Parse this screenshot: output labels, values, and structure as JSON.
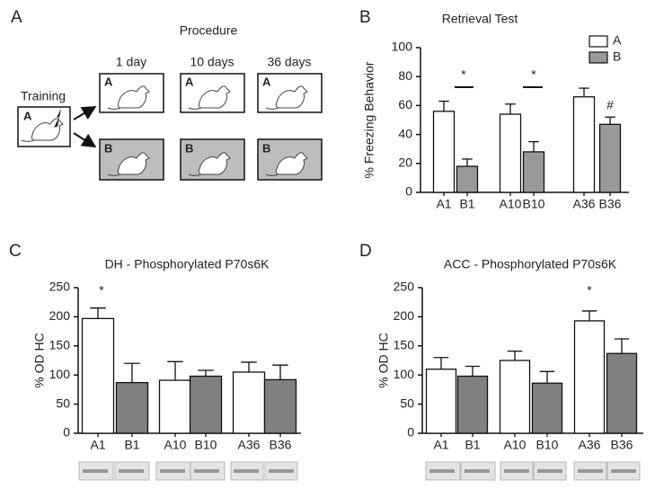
{
  "panel_labels": [
    "A",
    "B",
    "C",
    "D"
  ],
  "diagram": {
    "title": "Procedure",
    "training": {
      "label": "Training",
      "box": "A"
    },
    "columns": [
      "1 day",
      "10 days",
      "36 days"
    ],
    "top_row": [
      "A",
      "A",
      "A"
    ],
    "bottom_row": [
      "B",
      "B",
      "B"
    ]
  },
  "chart_data": [
    {
      "type": "bar",
      "title": "Retrieval Test",
      "y_label": "% Freezing Behavior",
      "categories": [
        "A1",
        "B1",
        "A10",
        "B10",
        "A36",
        "B36"
      ],
      "values": [
        56,
        18,
        54,
        28,
        66,
        47
      ],
      "errors": [
        7,
        5,
        7,
        7,
        6,
        5
      ],
      "colors": [
        "#ffffff",
        "#999999",
        "#ffffff",
        "#999999",
        "#ffffff",
        "#999999"
      ],
      "legend": [
        {
          "name": "A",
          "color": "#ffffff"
        },
        {
          "name": "B",
          "color": "#999999"
        }
      ],
      "annotations": [
        "*",
        "*",
        "#"
      ],
      "ylim": [
        0,
        100
      ],
      "yticks": [
        0,
        20,
        40,
        60,
        80,
        100
      ]
    },
    {
      "type": "bar",
      "title": "DH - Phosphorylated P70s6K",
      "y_label": "% OD HC",
      "categories": [
        "A1",
        "B1",
        "A10",
        "B10",
        "A36",
        "B36"
      ],
      "values": [
        197,
        87,
        91,
        98,
        105,
        92
      ],
      "errors": [
        18,
        33,
        32,
        10,
        17,
        25
      ],
      "colors": [
        "#ffffff",
        "#808080",
        "#ffffff",
        "#808080",
        "#ffffff",
        "#808080"
      ],
      "annotations": [
        "*"
      ],
      "ylim": [
        0,
        250
      ],
      "yticks": [
        0,
        50,
        100,
        150,
        200,
        250
      ]
    },
    {
      "type": "bar",
      "title": "ACC - Phosphorylated P70s6K",
      "y_label": "% OD HC",
      "categories": [
        "A1",
        "B1",
        "A10",
        "B10",
        "A36",
        "B36"
      ],
      "values": [
        110,
        98,
        125,
        86,
        193,
        137
      ],
      "errors": [
        20,
        17,
        16,
        20,
        17,
        25
      ],
      "colors": [
        "#ffffff",
        "#808080",
        "#ffffff",
        "#808080",
        "#ffffff",
        "#808080"
      ],
      "annotations": [
        "*"
      ],
      "ylim": [
        0,
        250
      ],
      "yticks": [
        0,
        50,
        100,
        150,
        200,
        250
      ]
    }
  ]
}
